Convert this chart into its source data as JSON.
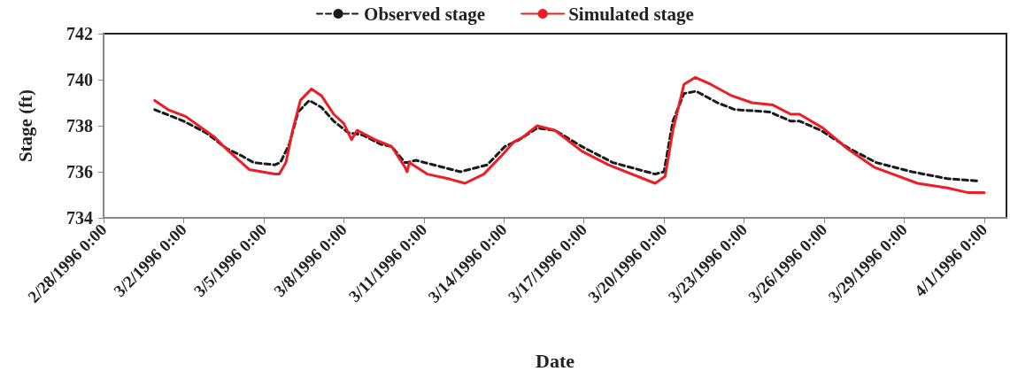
{
  "chart_data": {
    "type": "line",
    "xlabel": "Date",
    "ylabel": "Stage (ft)",
    "xlim": [
      "1996-02-28T00:00",
      "1996-04-01T20:00"
    ],
    "xticks": [
      {
        "value": "1996-02-28T00:00",
        "label": "2/28/1996 0:00"
      },
      {
        "value": "1996-03-02T00:00",
        "label": "3/2/1996 0:00"
      },
      {
        "value": "1996-03-05T00:00",
        "label": "3/5/1996 0:00"
      },
      {
        "value": "1996-03-08T00:00",
        "label": "3/8/1996 0:00"
      },
      {
        "value": "1996-03-11T00:00",
        "label": "3/11/1996 0:00"
      },
      {
        "value": "1996-03-14T00:00",
        "label": "3/14/1996 0:00"
      },
      {
        "value": "1996-03-17T00:00",
        "label": "3/17/1996 0:00"
      },
      {
        "value": "1996-03-20T00:00",
        "label": "3/20/1996 0:00"
      },
      {
        "value": "1996-03-23T00:00",
        "label": "3/23/1996 0:00"
      },
      {
        "value": "1996-03-26T00:00",
        "label": "3/26/1996 0:00"
      },
      {
        "value": "1996-03-29T00:00",
        "label": "3/29/1996 0:00"
      },
      {
        "value": "1996-04-01T00:00",
        "label": "4/1/1996 0:00"
      }
    ],
    "ylim": [
      734,
      742
    ],
    "yticks": [
      734,
      736,
      738,
      740,
      742
    ],
    "grid": false,
    "legend": "top",
    "marker": "none",
    "series": [
      {
        "name": "Observed stage",
        "color": "#1a1a1a",
        "line_style": "dashed",
        "x": [
          "1996-02-29T22:00",
          "1996-03-02T00:00",
          "1996-03-02T20:00",
          "1996-03-03T15:00",
          "1996-03-04T04:00",
          "1996-03-04T15:00",
          "1996-03-05T10:00",
          "1996-03-05T15:00",
          "1996-03-05T23:00",
          "1996-03-06T07:00",
          "1996-03-06T17:00",
          "1996-03-07T04:00",
          "1996-03-07T15:00",
          "1996-03-08T04:00",
          "1996-03-08T17:00",
          "1996-03-09T09:00",
          "1996-03-09T19:00",
          "1996-03-10T07:00",
          "1996-03-10T09:00",
          "1996-03-10T17:00",
          "1996-03-11T09:00",
          "1996-03-12T09:00",
          "1996-03-13T09:00",
          "1996-03-14T01:00",
          "1996-03-14T14:00",
          "1996-03-15T06:00",
          "1996-03-15T22:00",
          "1996-03-16T22:00",
          "1996-03-18T02:00",
          "1996-03-19T16:00",
          "1996-03-20T00:00",
          "1996-03-20T08:00",
          "1996-03-20T18:00",
          "1996-03-21T05:00",
          "1996-03-22T00:00",
          "1996-03-22T16:00",
          "1996-03-23T23:00",
          "1996-03-24T18:00",
          "1996-03-25T02:00",
          "1996-03-25T21:00",
          "1996-03-26T23:00",
          "1996-03-27T23:00",
          "1996-03-29T07:00",
          "1996-03-30T15:00",
          "1996-03-31T18:00"
        ],
        "values": [
          738.7,
          738.2,
          737.7,
          737.0,
          736.7,
          736.4,
          736.3,
          736.4,
          737.2,
          738.6,
          739.1,
          738.8,
          738.2,
          737.7,
          737.6,
          737.2,
          737.1,
          736.4,
          736.4,
          736.5,
          736.3,
          736.0,
          736.3,
          737.1,
          737.4,
          737.9,
          737.8,
          737.1,
          736.4,
          735.9,
          736.0,
          738.2,
          739.4,
          739.5,
          739.0,
          738.7,
          738.6,
          738.2,
          738.2,
          737.8,
          737.0,
          736.4,
          736.0,
          735.7,
          735.6
        ]
      },
      {
        "name": "Simulated stage",
        "color": "#ee1c25",
        "line_style": "solid",
        "x": [
          "1996-02-29T22:00",
          "1996-03-01T10:00",
          "1996-03-02T02:00",
          "1996-03-03T04:00",
          "1996-03-03T12:00",
          "1996-03-04T04:00",
          "1996-03-04T11:00",
          "1996-03-05T10:00",
          "1996-03-05T14:00",
          "1996-03-05T20:00",
          "1996-03-06T02:00",
          "1996-03-06T09:00",
          "1996-03-06T19:00",
          "1996-03-07T04:00",
          "1996-03-07T15:00",
          "1996-03-08T00:00",
          "1996-03-08T07:00",
          "1996-03-08T12:00",
          "1996-03-09T04:00",
          "1996-03-09T19:00",
          "1996-03-10T07:00",
          "1996-03-10T09:00",
          "1996-03-10T11:00",
          "1996-03-11T03:00",
          "1996-03-11T22:00",
          "1996-03-12T13:00",
          "1996-03-13T06:00",
          "1996-03-13T22:00",
          "1996-03-14T09:00",
          "1996-03-14T17:00",
          "1996-03-15T06:00",
          "1996-03-15T22:00",
          "1996-03-16T22:00",
          "1996-03-17T22:00",
          "1996-03-19T16:00",
          "1996-03-20T01:00",
          "1996-03-20T08:00",
          "1996-03-20T18:00",
          "1996-03-21T04:00",
          "1996-03-21T18:00",
          "1996-03-22T13:00",
          "1996-03-23T07:00",
          "1996-03-24T02:00",
          "1996-03-24T18:00",
          "1996-03-25T02:00",
          "1996-03-25T23:00",
          "1996-03-26T21:00",
          "1996-03-27T21:00",
          "1996-03-29T12:00",
          "1996-03-30T15:00",
          "1996-03-31T09:00",
          "1996-04-01T00:00"
        ],
        "values": [
          739.1,
          738.7,
          738.4,
          737.5,
          737.1,
          736.4,
          736.1,
          735.9,
          735.9,
          736.4,
          737.8,
          739.1,
          739.6,
          739.3,
          738.5,
          738.1,
          737.4,
          737.8,
          737.4,
          737.1,
          736.2,
          736.0,
          736.4,
          735.9,
          735.7,
          735.5,
          735.9,
          736.7,
          737.3,
          737.5,
          738.0,
          737.8,
          736.9,
          736.3,
          735.5,
          735.8,
          737.8,
          739.8,
          740.1,
          739.8,
          739.3,
          739.0,
          738.9,
          738.5,
          738.5,
          737.9,
          737.0,
          736.2,
          735.5,
          735.3,
          735.1,
          735.1
        ]
      }
    ]
  }
}
